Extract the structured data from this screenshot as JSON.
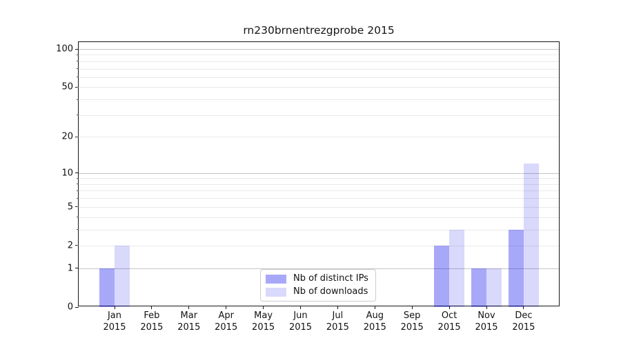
{
  "chart_data": {
    "type": "bar",
    "title": "rn230brnentrezgprobe 2015",
    "categories": [
      "Jan",
      "Feb",
      "Mar",
      "Apr",
      "May",
      "Jun",
      "Jul",
      "Aug",
      "Sep",
      "Oct",
      "Nov",
      "Dec"
    ],
    "x_tick_year": "2015",
    "series": [
      {
        "name": "Nb of distinct IPs",
        "color": "rgba(0,0,238,0.34)",
        "values": [
          1,
          0,
          0,
          0,
          0,
          0,
          0,
          0,
          0,
          2,
          1,
          3
        ]
      },
      {
        "name": "Nb of downloads",
        "color": "rgba(0,0,238,0.15)",
        "values": [
          2,
          0,
          0,
          0,
          0,
          0,
          0,
          0,
          0,
          3,
          1,
          12
        ]
      }
    ],
    "y_scale": "log10(1+value)",
    "ylim": [
      0,
      113
    ],
    "y_ticks_labeled": [
      0,
      1,
      2,
      5,
      10,
      20,
      50,
      100
    ],
    "y_gridlines_major": [
      1,
      10,
      100
    ],
    "y_gridlines_minor": [
      2,
      3,
      4,
      5,
      6,
      7,
      8,
      9,
      20,
      30,
      40,
      50,
      60,
      70,
      80,
      90
    ],
    "grid": "horizontal",
    "legend_position": "lower center inside axes"
  },
  "colors": {
    "grid_major": "#c4c4c4",
    "grid_minor": "#e9e9e9",
    "axis": "#161616",
    "text": "#111111"
  }
}
